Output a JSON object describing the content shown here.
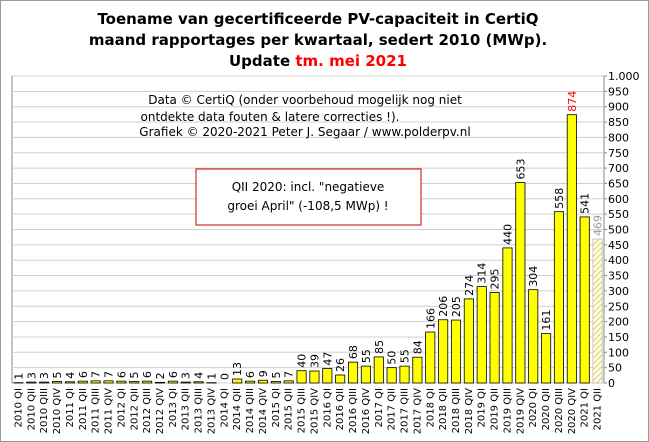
{
  "chart_data": {
    "type": "bar",
    "title": [
      "Toename van gecertificeerde PV-capaciteit in CertiQ",
      "maand rapportages per kwartaal, sedert 2010 (MWp)."
    ],
    "subtitle": {
      "prefix": "Update",
      "highlight": "tm. mei 2021",
      "highlight_color": "#ff0000"
    },
    "annotations": [
      "Data © CertiQ (onder voorbehoud mogelijk  nog niet",
      "ontdekte data fouten & latere correcties !).",
      "Grafiek  © 2020-2021 Peter J. Segaar / www.polderpv.nl"
    ],
    "callout": [
      "QII 2020: incl. \"negatieve",
      "groei April\"  (-108,5 MWp) !"
    ],
    "categories": [
      "2010 QI",
      "2010 QII",
      "2010 QIII",
      "2010 QIV",
      "2011 QI",
      "2011 QII",
      "2011 QIII",
      "2011 QIV",
      "2012 QI",
      "2012 QII",
      "2012 QIII",
      "2012 QIV",
      "2013 QI",
      "2013 QII",
      "2013 QIII",
      "2013 QIV",
      "2014 QI",
      "2014 QII",
      "2014 QIII",
      "2014 QIV",
      "2015 QI",
      "2015 QII",
      "2015 QIII",
      "2015 QIV",
      "2016 QI",
      "2016 QII",
      "2016 QIII",
      "2016 QIV",
      "2017 QI",
      "2017 QII",
      "2017 QIII",
      "2017 QIV",
      "2018 QI",
      "2018 QII",
      "2018 QIII",
      "2018 QIV",
      "2019 QI",
      "2019 QII",
      "2019 QIII",
      "2019 QIV",
      "2020 QI",
      "2020 QII",
      "2020 QIII",
      "2020 QIV",
      "2021 QI",
      "2021 QII"
    ],
    "values": [
      1,
      3,
      3,
      5,
      4,
      6,
      7,
      7,
      6,
      5,
      6,
      2,
      6,
      3,
      4,
      1,
      0,
      13,
      6,
      9,
      5,
      7,
      40,
      39,
      47,
      26,
      68,
      55,
      85,
      50,
      55,
      84,
      166,
      206,
      205,
      274,
      314,
      295,
      440,
      653,
      304,
      161,
      558,
      874,
      541,
      469
    ],
    "value_label_colors": [
      "#000",
      "#000",
      "#000",
      "#000",
      "#000",
      "#000",
      "#000",
      "#000",
      "#000",
      "#000",
      "#000",
      "#000",
      "#000",
      "#000",
      "#000",
      "#000",
      "#000",
      "#000",
      "#000",
      "#000",
      "#000",
      "#000",
      "#000",
      "#000",
      "#000",
      "#000",
      "#000",
      "#000",
      "#000",
      "#000",
      "#000",
      "#000",
      "#000",
      "#000",
      "#000",
      "#000",
      "#000",
      "#000",
      "#000",
      "#000",
      "#000",
      "#000",
      "#000",
      "#ff0000",
      "#000",
      "#999999"
    ],
    "bar_patterns": [
      "solid",
      "solid",
      "solid",
      "solid",
      "solid",
      "solid",
      "solid",
      "solid",
      "solid",
      "solid",
      "solid",
      "solid",
      "solid",
      "solid",
      "solid",
      "solid",
      "solid",
      "solid",
      "solid",
      "solid",
      "solid",
      "solid",
      "solid",
      "solid",
      "solid",
      "solid",
      "solid",
      "solid",
      "solid",
      "solid",
      "solid",
      "solid",
      "solid",
      "solid",
      "solid",
      "solid",
      "solid",
      "solid",
      "solid",
      "solid",
      "solid",
      "solid",
      "solid",
      "solid",
      "solid",
      "hatched"
    ],
    "color": "#ffff00",
    "ylim": [
      0,
      1000
    ],
    "yticks": [
      0,
      50,
      100,
      150,
      200,
      250,
      300,
      350,
      400,
      450,
      500,
      550,
      600,
      650,
      700,
      750,
      800,
      850,
      900,
      950,
      {
        "value": 1000,
        "label": "1.000"
      }
    ],
    "grid": true
  }
}
